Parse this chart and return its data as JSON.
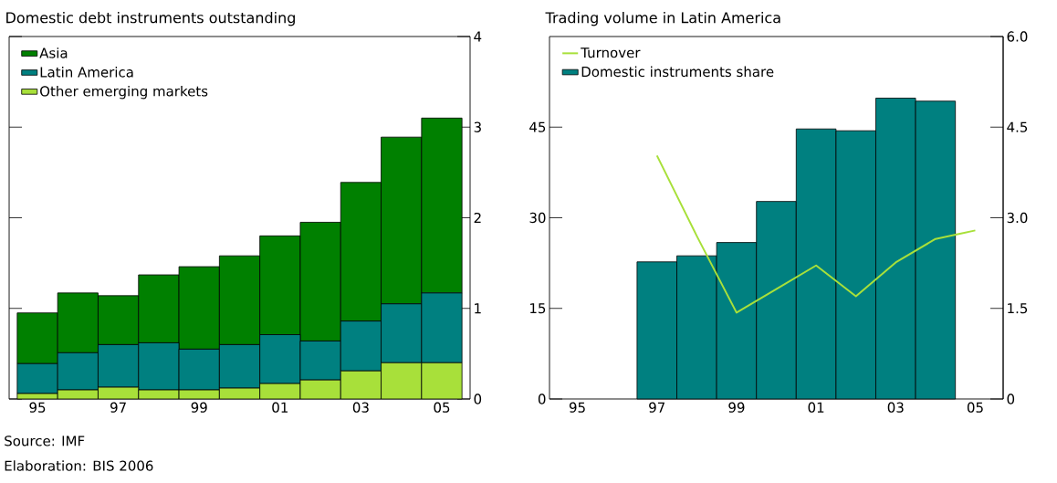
{
  "chart_data": [
    {
      "type": "bar",
      "title": "Domestic debt instruments outstanding",
      "stacked": true,
      "legend": "top left",
      "categories": [
        "95",
        null,
        "97",
        null,
        "99",
        null,
        "01",
        null,
        "03",
        null,
        "05"
      ],
      "series": [
        {
          "name": "Other emerging markets",
          "color": "#a8e03a",
          "values": [
            0.06,
            0.1,
            0.13,
            0.1,
            0.1,
            0.12,
            0.17,
            0.21,
            0.31,
            0.4,
            0.4
          ]
        },
        {
          "name": "Latin America",
          "color": "#008080",
          "values": [
            0.33,
            0.41,
            0.47,
            0.52,
            0.45,
            0.48,
            0.54,
            0.43,
            0.55,
            0.65,
            0.77
          ]
        },
        {
          "name": "Asia",
          "color": "#008000",
          "values": [
            0.56,
            0.66,
            0.54,
            0.75,
            0.91,
            0.98,
            1.09,
            1.31,
            1.53,
            1.84,
            1.93
          ]
        }
      ],
      "ylim": [
        0,
        4
      ],
      "yticks": [
        0,
        1,
        2,
        3,
        4
      ],
      "annotations": [
        "Source: IMF",
        "Elaboration: BIS 2006"
      ]
    },
    {
      "type": "bar",
      "title": "Trading volume in Latin America",
      "legend": "top left",
      "categories": [
        "95",
        null,
        "97",
        null,
        "99",
        null,
        "01",
        null,
        "03",
        null,
        "05"
      ],
      "series": [
        {
          "name": "Turnover",
          "type": "line",
          "axis": "y2",
          "color": "#a8e03a",
          "values": [
            null,
            null,
            4.03,
            2.7,
            1.43,
            1.82,
            2.21,
            1.7,
            2.26,
            2.65,
            2.79
          ]
        },
        {
          "name": "Domestic instruments share",
          "type": "bar",
          "color": "#008080",
          "values": [
            null,
            null,
            22.7,
            23.7,
            25.9,
            32.7,
            44.7,
            44.4,
            49.8,
            49.3,
            null
          ]
        }
      ],
      "ylim": [
        0,
        60
      ],
      "yticks": [
        0,
        15,
        30,
        45
      ],
      "y2lim": [
        0,
        6
      ],
      "y2ticks": [
        0,
        1.5,
        {
          "value": 3,
          "label": "3.0"
        },
        4.5,
        {
          "value": 6,
          "label": "6.0"
        }
      ]
    }
  ]
}
